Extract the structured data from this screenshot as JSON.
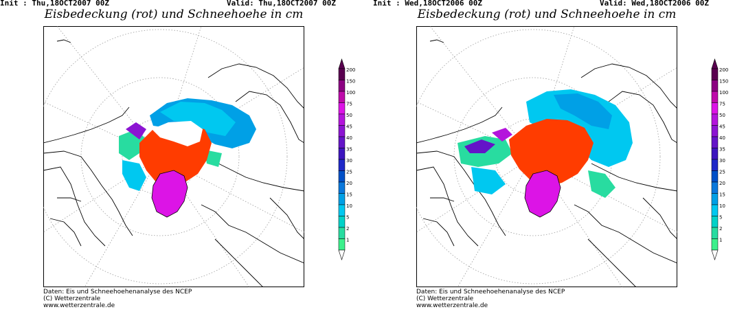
{
  "panels": [
    {
      "init": "Init : Thu,18OCT2007 00Z",
      "valid": "Valid: Thu,18OCT2007 00Z",
      "title": "Eisbedeckung (rot) und Schneehoehe in cm",
      "footer": {
        "line1": "Daten: Eis und Schneehoehenanalyse des NCEP",
        "line2": "(C) Wetterzentrale",
        "line3": "www.wetterzentrale.de"
      }
    },
    {
      "init": "Init : Wed,18OCT2006 00Z",
      "valid": "Valid: Wed,18OCT2006 00Z",
      "title": "Eisbedeckung (rot) und Schneehoehe in cm",
      "footer": {
        "line1": "Daten: Eis und Schneehoehenanalyse des NCEP",
        "line2": "(C) Wetterzentrale",
        "line3": "www.wetterzentrale.de"
      }
    }
  ],
  "legend": {
    "levels": [
      "1",
      "2",
      "5",
      "10",
      "15",
      "20",
      "25",
      "30",
      "35",
      "40",
      "45",
      "50",
      "75",
      "100",
      "150",
      "200"
    ],
    "colors": [
      "#3cf08c",
      "#28dca0",
      "#00d2c8",
      "#00c8f0",
      "#00a0e6",
      "#0a78dc",
      "#0050c8",
      "#1e28c8",
      "#3c14be",
      "#6414c8",
      "#8c14d2",
      "#b414dc",
      "#dc14e6",
      "#be0aaa",
      "#8c0082",
      "#5a0050"
    ]
  },
  "colors": {
    "ice": "#ff3c00",
    "ice_light": "#ffffff",
    "greenland": "#dc14e6",
    "snow_light": "#00c8f0",
    "snow_mid": "#00a0e6",
    "snow_low": "#28dca0"
  }
}
